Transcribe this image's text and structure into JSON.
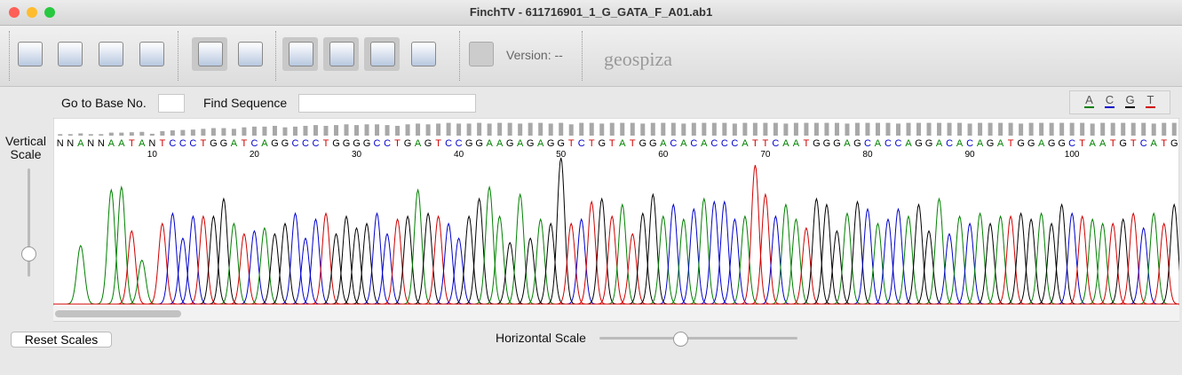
{
  "window": {
    "title": "FinchTV - 611716901_1_G_GATA_F_A01.ab1"
  },
  "toolbar": {
    "version_label": "Version: --",
    "logo": "geospiza"
  },
  "search": {
    "goto_label": "Go to Base No.",
    "find_label": "Find Sequence"
  },
  "legend": [
    {
      "base": "A",
      "color": "#008000"
    },
    {
      "base": "C",
      "color": "#0000cc"
    },
    {
      "base": "G",
      "color": "#000000"
    },
    {
      "base": "T",
      "color": "#d00000"
    }
  ],
  "trace": {
    "sequence": "NNANNAATANTCCCTGGATCAGGCCCTGGGGCCTGAGTCCGGAAGAGAGGTCTGTATGGACACACCCATTCAATGGGAGCACCAGGACACAGATGGAGGCTAATGTCATG",
    "position_labels": [
      10,
      20,
      30,
      40,
      50,
      60,
      70,
      80,
      90,
      100
    ],
    "quality": [
      4,
      4,
      6,
      4,
      4,
      8,
      8,
      9,
      10,
      5,
      12,
      14,
      15,
      16,
      18,
      20,
      20,
      18,
      22,
      24,
      24,
      26,
      22,
      24,
      26,
      28,
      26,
      28,
      30,
      28,
      30,
      30,
      28,
      26,
      30,
      32,
      30,
      32,
      34,
      32,
      32,
      34,
      32,
      34,
      34,
      32,
      34,
      34,
      32,
      34,
      30,
      34,
      34,
      32,
      34,
      34,
      34,
      32,
      34,
      34,
      34,
      32,
      34,
      34,
      34,
      34,
      32,
      34,
      34,
      34,
      34,
      32,
      34,
      34,
      34,
      34,
      34,
      32,
      34,
      34,
      34,
      34,
      32,
      34,
      34,
      34,
      34,
      34,
      34,
      32,
      34,
      34,
      34,
      34,
      32,
      34,
      34,
      34,
      34,
      34,
      34,
      32,
      34,
      34,
      34,
      34,
      34,
      32,
      34,
      34
    ],
    "peak_heights": [
      null,
      null,
      40,
      null,
      null,
      78,
      80,
      50,
      30,
      null,
      55,
      62,
      45,
      60,
      60,
      60,
      72,
      55,
      48,
      50,
      52,
      48,
      55,
      62,
      45,
      58,
      62,
      48,
      60,
      52,
      55,
      62,
      48,
      58,
      60,
      78,
      62,
      60,
      55,
      45,
      60,
      72,
      80,
      60,
      42,
      75,
      45,
      58,
      55,
      100,
      55,
      58,
      70,
      72,
      60,
      68,
      48,
      62,
      75,
      60,
      68,
      58,
      65,
      72,
      70,
      70,
      58,
      60,
      95,
      75,
      60,
      68,
      58,
      52,
      72,
      68,
      50,
      62,
      70,
      65,
      55,
      58,
      65,
      60,
      68,
      50,
      72,
      48,
      60,
      55,
      62,
      55,
      60,
      60,
      62,
      58,
      62,
      55,
      68,
      62,
      60,
      58,
      55,
      55,
      58,
      62,
      52,
      62,
      55,
      68
    ]
  },
  "controls": {
    "vertical_scale": "Vertical Scale",
    "reset": "Reset Scales",
    "horizontal_scale": "Horizontal Scale"
  }
}
